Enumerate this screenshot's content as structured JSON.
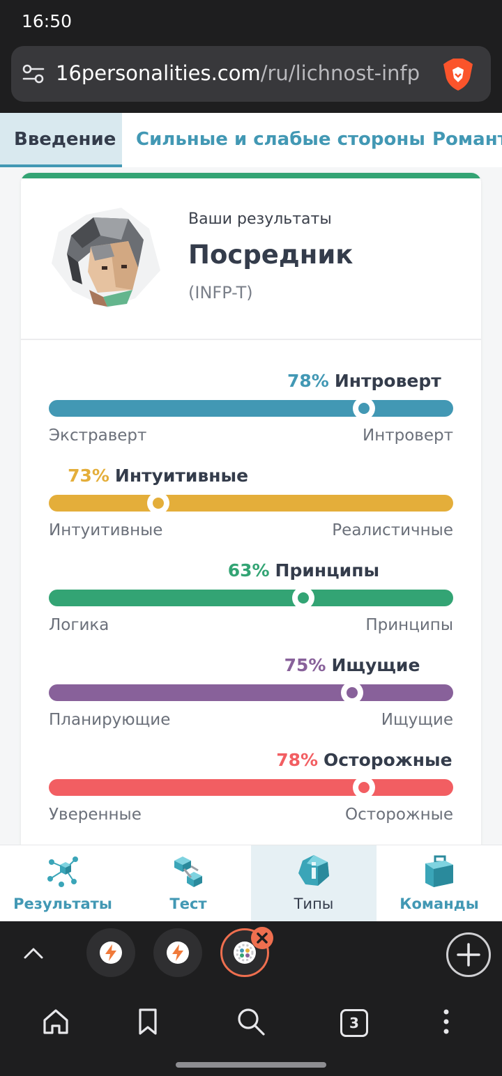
{
  "status_bar": {
    "time": "16:50"
  },
  "browser": {
    "url_domain": "16personalities.com",
    "url_path": "/ru/lichnost-infp",
    "open_tabs_count": "3"
  },
  "page_tabs": [
    {
      "label": "Введение",
      "active": true
    },
    {
      "label": "Сильные и слабые стороны",
      "active": false
    },
    {
      "label": "Романт",
      "active": false
    }
  ],
  "result": {
    "label": "Ваши результаты",
    "type_name": "Посредник",
    "type_code": "(INFP-T)"
  },
  "traits": [
    {
      "pct": "78%",
      "name": "Интроверт",
      "left": "Экстраверт",
      "right": "Интроверт",
      "color": "#4298b4",
      "position": 0.78
    },
    {
      "pct": "73%",
      "name": "Интуитивные",
      "left": "Интуитивные",
      "right": "Реалистичные",
      "color": "#e4ae3a",
      "position": 0.27
    },
    {
      "pct": "63%",
      "name": "Принципы",
      "left": "Логика",
      "right": "Принципы",
      "color": "#33a474",
      "position": 0.63
    },
    {
      "pct": "75%",
      "name": "Ищущие",
      "left": "Планирующие",
      "right": "Ищущие",
      "color": "#88619a",
      "position": 0.75
    },
    {
      "pct": "78%",
      "name": "Осторожные",
      "left": "Уверенные",
      "right": "Осторожные",
      "color": "#f25e62",
      "position": 0.78
    }
  ],
  "site_nav": [
    {
      "label": "Результаты",
      "icon": "results-icon",
      "active": false
    },
    {
      "label": "Тест",
      "icon": "test-icon",
      "active": false
    },
    {
      "label": "Типы",
      "icon": "types-icon",
      "active": true
    },
    {
      "label": "Команды",
      "icon": "teams-icon",
      "active": false
    }
  ]
}
